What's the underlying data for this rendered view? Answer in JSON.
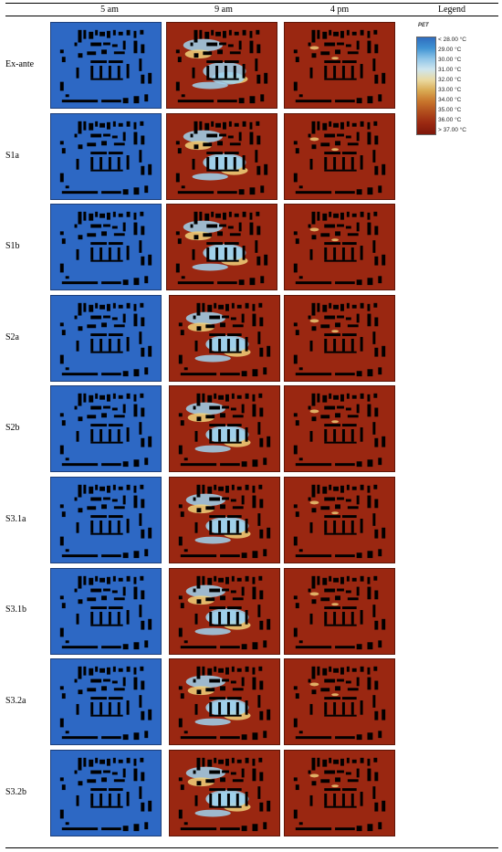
{
  "columns": [
    "5 am",
    "9 am",
    "4 pm",
    "Legend"
  ],
  "rows": [
    "Ex-ante",
    "S1a",
    "S1b",
    "S2a",
    "S2b",
    "S3.1a",
    "S3.1b",
    "S3.2a",
    "S3.2b"
  ],
  "legend": {
    "title": "PET",
    "items": [
      "< 28.00 °C",
      "29.00 °C",
      "30.00 °C",
      "31.00 °C",
      "32.00 °C",
      "33.00 °C",
      "34.00 °C",
      "35.00 °C",
      "36.00 °C",
      "> 37.00 °C"
    ],
    "colors": [
      "#2f6dbf",
      "#3f93d3",
      "#8fc5e8",
      "#cfe6ee",
      "#ead9a0",
      "#d9aa52",
      "#c8762c",
      "#b14d1d",
      "#9c2a12",
      "#7e170a"
    ]
  },
  "colors": {
    "cool_map": "#2d68c4",
    "hot_map": "#9a2711",
    "building": "#000000",
    "shade_hot": "#f0d27a",
    "shade_cool": "#9fd4ef"
  }
}
